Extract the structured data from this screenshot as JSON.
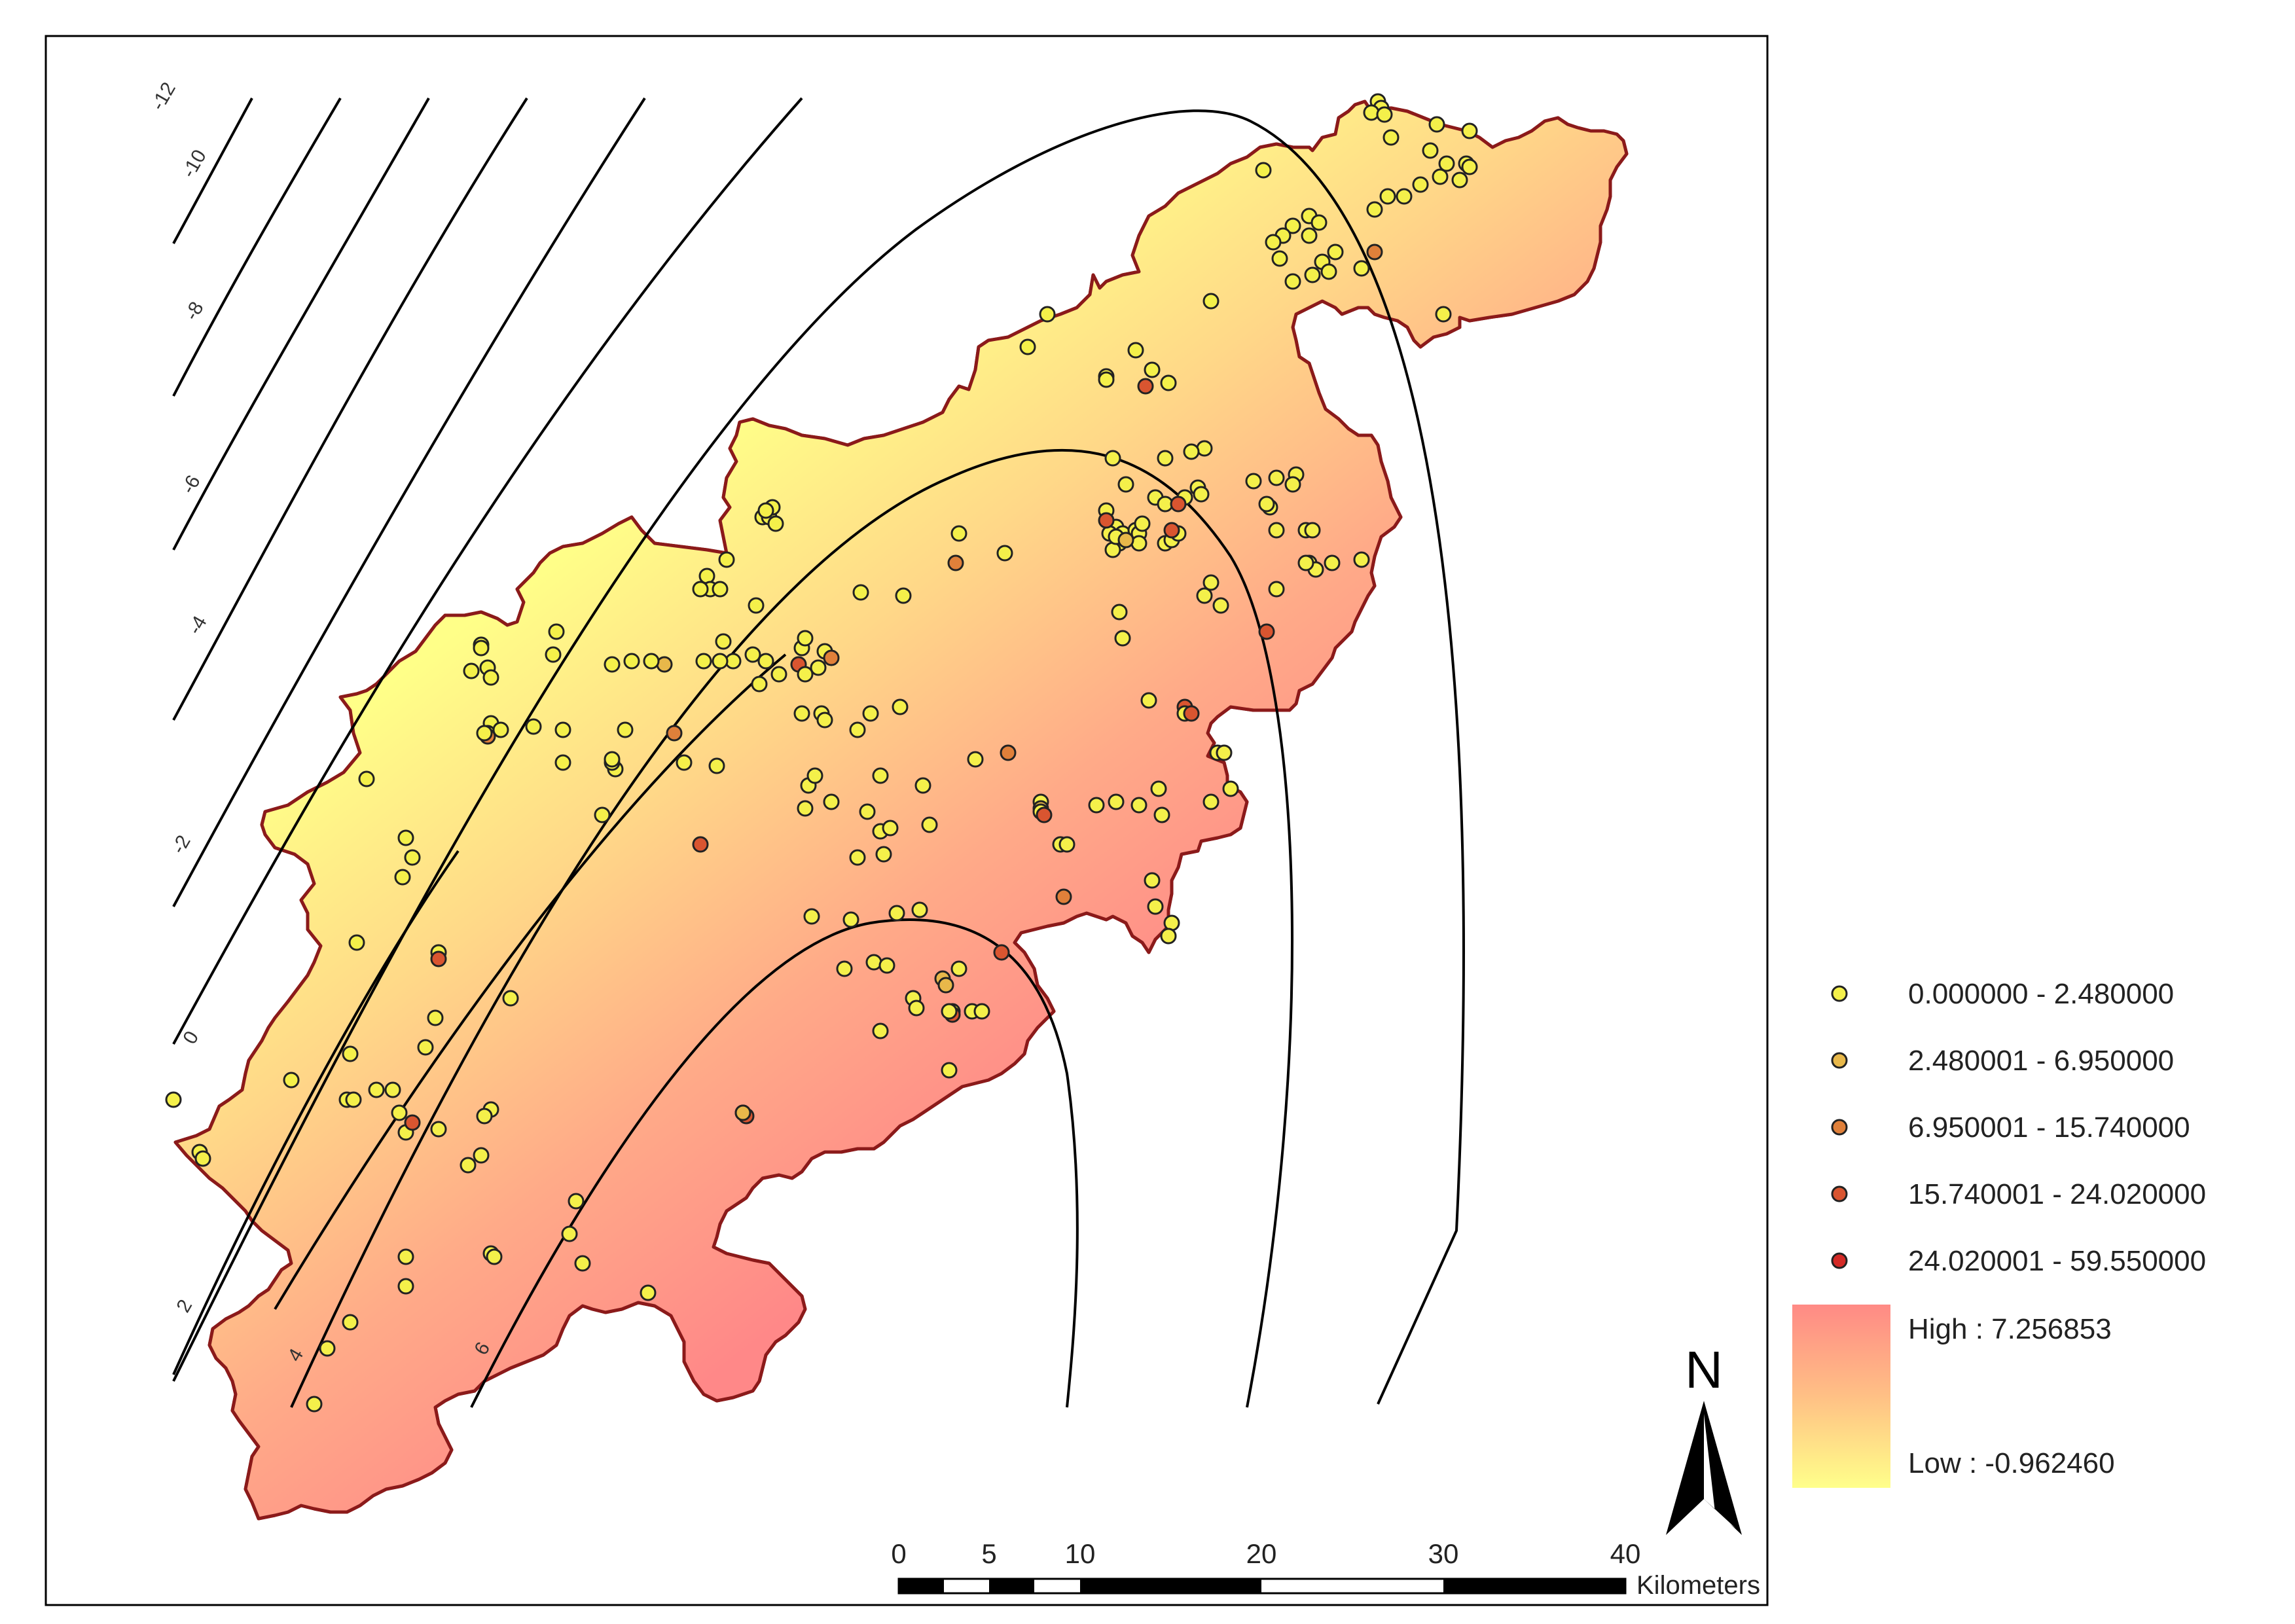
{
  "map": {
    "contour_labels": [
      "-12",
      "-10",
      "-8",
      "-6",
      "-4",
      "-2",
      "0",
      "2",
      "4",
      "6"
    ],
    "class_breaks": [
      {
        "label": "0.000000 - 2.480000",
        "color": "#f4f04a"
      },
      {
        "label": "2.480001 - 6.950000",
        "color": "#e8b84a"
      },
      {
        "label": "6.950001 - 15.740000",
        "color": "#e0803a"
      },
      {
        "label": "15.740001 - 24.020000",
        "color": "#d95530"
      },
      {
        "label": "24.020001 - 59.550000",
        "color": "#d42a26"
      }
    ],
    "surface_legend": {
      "high_label": "High : 7.256853",
      "low_label": "Low : -0.962460",
      "high_color": "#ff8a85",
      "low_color": "#ffff8a"
    },
    "north_label": "N",
    "scale_bar": {
      "ticks": [
        "0",
        "5",
        "10",
        "20",
        "30",
        "40"
      ],
      "unit": "Kilometers"
    },
    "boundary_color": "#8b1a1a"
  }
}
